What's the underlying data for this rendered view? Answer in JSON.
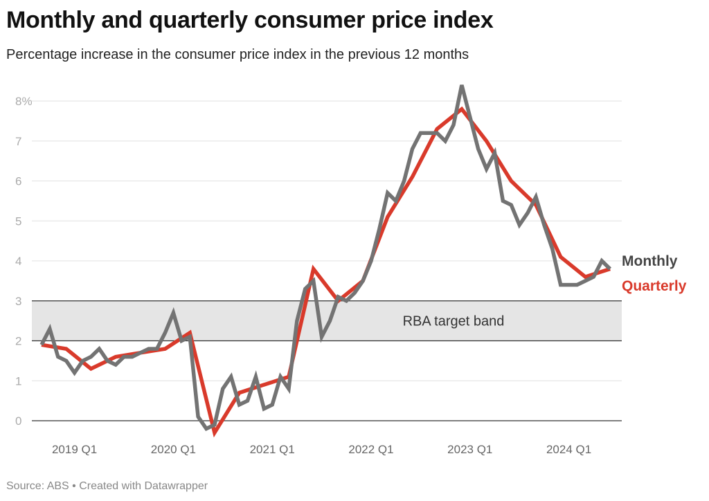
{
  "chart_data": {
    "type": "line",
    "title": "Monthly and quarterly consumer price index",
    "subtitle": "Percentage increase in the consumer price index in the previous 12 months",
    "source": "Source: ABS • Created with Datawrapper",
    "ylim": [
      0,
      8
    ],
    "y_ticks": [
      "0",
      "1",
      "2",
      "3",
      "4",
      "5",
      "6",
      "7",
      "8%"
    ],
    "x_ticks": [
      "2019 Q1",
      "2020 Q1",
      "2021 Q1",
      "2022 Q1",
      "2023 Q1",
      "2024 Q1"
    ],
    "x_range": [
      "2018-09",
      "2024-06"
    ],
    "grid": true,
    "annotation": {
      "label": "RBA target band",
      "from": 2,
      "to": 3
    },
    "series": [
      {
        "name": "Monthly",
        "color": "#737373",
        "frequency": "monthly",
        "start": "2018-09",
        "values": [
          1.9,
          2.3,
          1.6,
          1.5,
          1.2,
          1.5,
          1.6,
          1.8,
          1.5,
          1.4,
          1.6,
          1.6,
          1.7,
          1.8,
          1.8,
          2.2,
          2.7,
          2.0,
          2.1,
          0.1,
          -0.2,
          -0.1,
          0.8,
          1.1,
          0.4,
          0.5,
          1.1,
          0.3,
          0.4,
          1.1,
          0.8,
          2.5,
          3.3,
          3.5,
          2.1,
          2.5,
          3.1,
          3.0,
          3.2,
          3.5,
          4.0,
          4.8,
          5.7,
          5.5,
          6.0,
          6.8,
          7.2,
          7.2,
          7.2,
          7.0,
          7.4,
          8.4,
          7.6,
          6.8,
          6.3,
          6.7,
          5.5,
          5.4,
          4.9,
          5.2,
          5.6,
          4.9,
          4.3,
          3.4,
          3.4,
          3.4,
          3.5,
          3.6,
          4.0,
          3.8
        ]
      },
      {
        "name": "Quarterly",
        "color": "#d93a2b",
        "frequency": "quarterly",
        "start": "2018-09",
        "values": [
          1.9,
          1.8,
          1.3,
          1.6,
          1.7,
          1.8,
          2.2,
          -0.3,
          0.7,
          0.9,
          1.1,
          3.8,
          3.0,
          3.5,
          5.1,
          6.1,
          7.3,
          7.8,
          7.0,
          6.0,
          5.4,
          4.1,
          3.6,
          3.8
        ]
      }
    ]
  }
}
